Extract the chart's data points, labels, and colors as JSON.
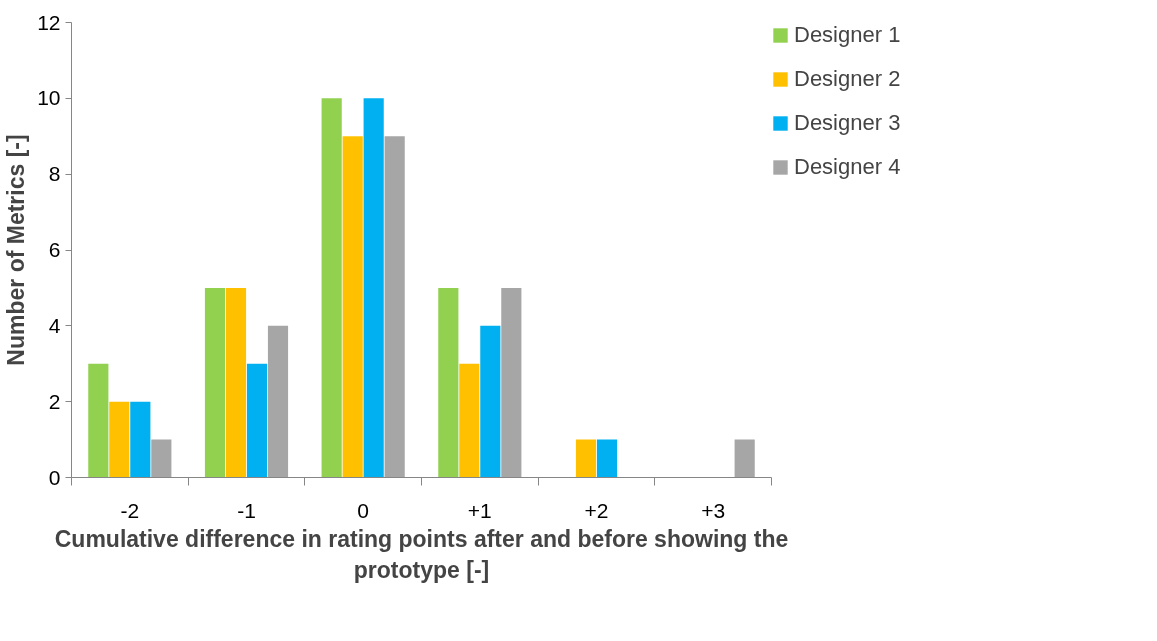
{
  "chart_data": {
    "type": "bar",
    "xlabel": "Cumulative difference in rating points after and before showing the prototype [-]",
    "ylabel": "Number of Metrics [-]",
    "categories": [
      "-2",
      "-1",
      "0",
      "+1",
      "+2",
      "+3"
    ],
    "series": [
      {
        "name": "Designer 1",
        "color": "#92d050",
        "values": [
          3,
          5,
          10,
          5,
          0,
          0
        ]
      },
      {
        "name": "Designer 2",
        "color": "#ffc000",
        "values": [
          2,
          5,
          9,
          3,
          1,
          0
        ]
      },
      {
        "name": "Designer 3",
        "color": "#00b0f0",
        "values": [
          2,
          3,
          10,
          4,
          1,
          0
        ]
      },
      {
        "name": "Designer 4",
        "color": "#a6a6a6",
        "values": [
          1,
          4,
          9,
          5,
          0,
          1
        ]
      }
    ],
    "ylim": [
      0,
      12
    ],
    "yticks": [
      0,
      2,
      4,
      6,
      8,
      10,
      12
    ],
    "grid": false,
    "legend": "right"
  }
}
